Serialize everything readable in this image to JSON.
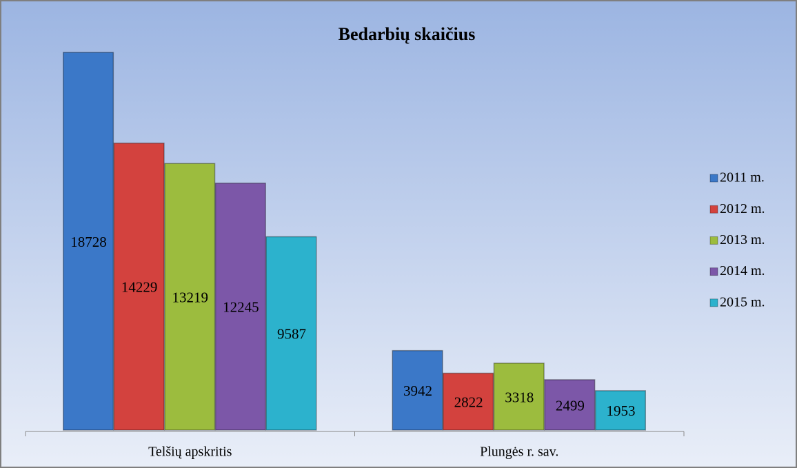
{
  "chart_data": {
    "type": "bar",
    "title": "Bedarbių skaičius",
    "categories": [
      "Telšių apskritis",
      "Plungės r. sav."
    ],
    "series": [
      {
        "name": "2011 m.",
        "color": "#3b78c8",
        "values": [
          18728,
          3942
        ]
      },
      {
        "name": "2012 m.",
        "color": "#d3423e",
        "values": [
          14229,
          2822
        ]
      },
      {
        "name": "2013 m.",
        "color": "#9cbc3e",
        "values": [
          13219,
          3318
        ]
      },
      {
        "name": "2014 m.",
        "color": "#7c57a8",
        "values": [
          12245,
          2499
        ]
      },
      {
        "name": "2015 m.",
        "color": "#2cb2cd",
        "values": [
          9587,
          1953
        ]
      }
    ],
    "legend": "right"
  }
}
